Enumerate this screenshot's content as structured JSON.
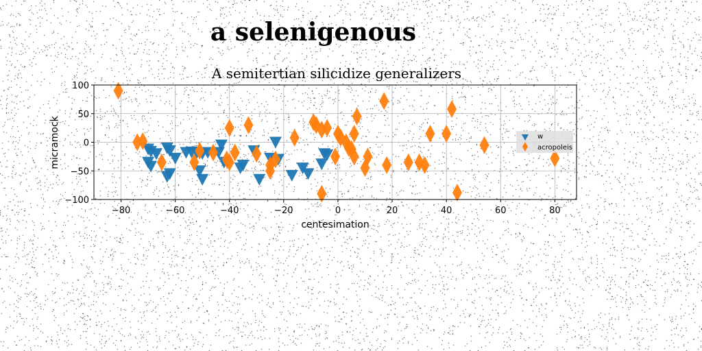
{
  "suptitle": "a selenigenous",
  "chart_data": {
    "type": "scatter",
    "title": "A semitertian silicidize generalizers",
    "xlabel": "centesimation",
    "ylabel": "micramock",
    "xlim": [
      -90,
      88
    ],
    "ylim": [
      -100,
      100
    ],
    "xticks": [
      -80,
      -60,
      -40,
      -20,
      0,
      20,
      40,
      60,
      80
    ],
    "yticks": [
      -100,
      -50,
      0,
      50,
      100
    ],
    "xtick_labels": [
      "−80",
      "−60",
      "−40",
      "−20",
      "0",
      "20",
      "40",
      "60",
      "80"
    ],
    "ytick_labels": [
      "−100",
      "−50",
      "0",
      "50",
      "100"
    ],
    "grid": true,
    "legend_position": "right",
    "series": [
      {
        "name": "w",
        "marker": "triangle-down",
        "color": "#1f77b4",
        "points": [
          [
            -70,
            -12
          ],
          [
            -69,
            -16
          ],
          [
            -67,
            -20
          ],
          [
            -70,
            -35
          ],
          [
            -69,
            -42
          ],
          [
            -63,
            -10
          ],
          [
            -62,
            -15
          ],
          [
            -60,
            -28
          ],
          [
            -63,
            -60
          ],
          [
            -62,
            -55
          ],
          [
            -56,
            -18
          ],
          [
            -54,
            -17
          ],
          [
            -52,
            -18
          ],
          [
            -50,
            -20
          ],
          [
            -51,
            -50
          ],
          [
            -50,
            -65
          ],
          [
            -48,
            -18
          ],
          [
            -43,
            -5
          ],
          [
            -44,
            -18
          ],
          [
            -42,
            -35
          ],
          [
            -36,
            -45
          ],
          [
            -35,
            -40
          ],
          [
            -31,
            -15
          ],
          [
            -29,
            -65
          ],
          [
            -25,
            -28
          ],
          [
            -23,
            0
          ],
          [
            -22,
            -30
          ],
          [
            -17,
            -58
          ],
          [
            -13,
            -45
          ],
          [
            -11,
            -55
          ],
          [
            -6,
            -38
          ],
          [
            -5,
            -20
          ],
          [
            -4,
            -22
          ]
        ]
      },
      {
        "name": "acropoleis",
        "marker": "thin-diamond",
        "color": "#ff7f0e",
        "points": [
          [
            -81,
            90
          ],
          [
            -74,
            0
          ],
          [
            -72,
            2
          ],
          [
            -65,
            -35
          ],
          [
            -53,
            -35
          ],
          [
            -51,
            -15
          ],
          [
            -46,
            -18
          ],
          [
            -41,
            -30
          ],
          [
            -40,
            25
          ],
          [
            -40,
            -35
          ],
          [
            -38,
            -18
          ],
          [
            -33,
            30
          ],
          [
            -30,
            -20
          ],
          [
            -25,
            -50
          ],
          [
            -25,
            -40
          ],
          [
            -23,
            -30
          ],
          [
            -16,
            8
          ],
          [
            -9,
            35
          ],
          [
            -8,
            30
          ],
          [
            -6,
            -90
          ],
          [
            -6,
            22
          ],
          [
            -4,
            25
          ],
          [
            -1,
            -25
          ],
          [
            0,
            15
          ],
          [
            1,
            8
          ],
          [
            3,
            0
          ],
          [
            4,
            -10
          ],
          [
            5,
            -12
          ],
          [
            6,
            15
          ],
          [
            6,
            -25
          ],
          [
            7,
            45
          ],
          [
            10,
            -45
          ],
          [
            11,
            -25
          ],
          [
            17,
            72
          ],
          [
            18,
            -40
          ],
          [
            26,
            -35
          ],
          [
            30,
            -35
          ],
          [
            32,
            -40
          ],
          [
            34,
            15
          ],
          [
            40,
            15
          ],
          [
            42,
            58
          ],
          [
            44,
            -88
          ],
          [
            54,
            -5
          ],
          [
            80,
            -28
          ]
        ]
      }
    ]
  }
}
